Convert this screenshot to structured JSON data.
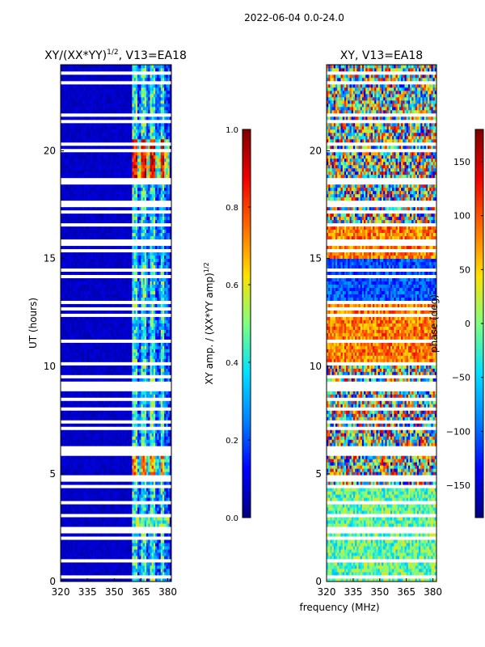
{
  "figure_title": "2022-06-04 0.0-24.0",
  "colors": {
    "jet": [
      "#00007f",
      "#0000ff",
      "#0080ff",
      "#00e0ff",
      "#7fff7f",
      "#ffe000",
      "#ff6a00",
      "#ef0000",
      "#7f0000"
    ],
    "gap": "#ffffff",
    "axis": "#000000"
  },
  "chart_data": [
    {
      "type": "heatmap",
      "title": "XY/(XX*YY)",
      "title_sup": "1/2",
      "title_suffix": ", V13=EA18",
      "xlabel": "",
      "ylabel": "UT (hours)",
      "x_range": [
        320,
        382
      ],
      "y_range": [
        0,
        24
      ],
      "x_ticks": [
        "320",
        "335",
        "350",
        "365",
        "380"
      ],
      "x_tick_values": [
        320,
        335,
        350,
        365,
        380
      ],
      "y_ticks": [
        "0",
        "5",
        "10",
        "15",
        "20"
      ],
      "y_tick_values": [
        0,
        5,
        10,
        15,
        20
      ],
      "colorbar": {
        "label": "XY amp. / (XX*YY amp)",
        "label_sup": "1/2",
        "range": [
          0.0,
          1.0
        ],
        "ticks": [
          "0.0",
          "0.2",
          "0.4",
          "0.6",
          "0.8",
          "1.0"
        ],
        "tick_values": [
          0.0,
          0.2,
          0.4,
          0.6,
          0.8,
          1.0
        ]
      },
      "features": [
        {
          "desc": "background amplitude",
          "value": 0.05
        },
        {
          "desc": "active band 360-380 MHz",
          "x": [
            360,
            381
          ],
          "value": 0.45
        },
        {
          "desc": "strong striping ~19-20.5 h",
          "x": [
            360,
            380
          ],
          "y": [
            18.8,
            20.6
          ],
          "value": 0.9
        },
        {
          "desc": "strong striping ~4.8-5.8 h",
          "x": [
            360,
            380
          ],
          "y": [
            4.8,
            5.9
          ],
          "value": 0.7
        },
        {
          "desc": "moderate ~2.5-3.2 h",
          "x": [
            360,
            380
          ],
          "y": [
            2.4,
            3.2
          ],
          "value": 0.6
        }
      ]
    },
    {
      "type": "heatmap",
      "title": "XY, V13=EA18",
      "xlabel": "frequency (MHz)",
      "ylabel": "",
      "x_range": [
        320,
        382
      ],
      "y_range": [
        0,
        24
      ],
      "x_ticks": [
        "320",
        "335",
        "350",
        "365",
        "380"
      ],
      "x_tick_values": [
        320,
        335,
        350,
        365,
        380
      ],
      "y_ticks": [
        "0",
        "5",
        "10",
        "15",
        "20"
      ],
      "y_tick_values": [
        0,
        5,
        10,
        15,
        20
      ],
      "colorbar": {
        "label": "phase (deg)",
        "range": [
          -180,
          180
        ],
        "ticks": [
          "−150",
          "−100",
          "−50",
          "0",
          "50",
          "100",
          "150"
        ],
        "tick_values": [
          -150,
          -100,
          -50,
          0,
          50,
          100,
          150
        ]
      },
      "features": [
        {
          "desc": "phase noisy across band, all hours",
          "value": 0
        },
        {
          "desc": "warm region 10-13 h",
          "y": [
            10,
            13
          ],
          "value": 90
        },
        {
          "desc": "warm region ~15-16.5 h",
          "y": [
            15,
            16.5
          ],
          "value": 80
        },
        {
          "desc": "blue region ~12.5-15 h",
          "y": [
            12.5,
            15
          ],
          "value": -100
        }
      ]
    }
  ]
}
